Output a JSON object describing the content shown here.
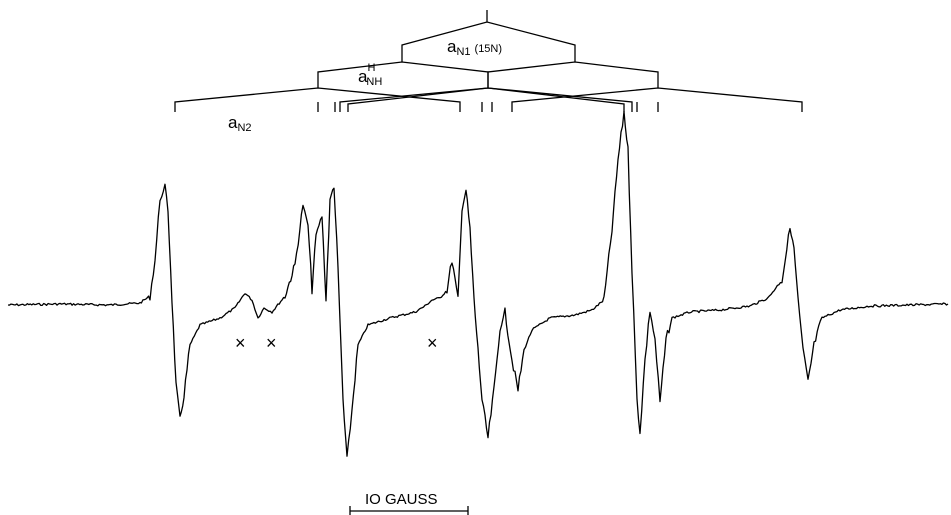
{
  "labels": {
    "a_n1": "a",
    "a_n1_sub": "N1",
    "a_n1_isotope": "(15N)",
    "a_nh": "a",
    "a_nh_sup": "H",
    "a_nh_sub": "NH",
    "a_n2": "a",
    "a_n2_sub": "N2"
  },
  "impurity_marks": [
    "×",
    "×",
    "×"
  ],
  "scale_bar": {
    "label": "IO GAUSS",
    "value": 10,
    "unit": "gauss"
  }
}
